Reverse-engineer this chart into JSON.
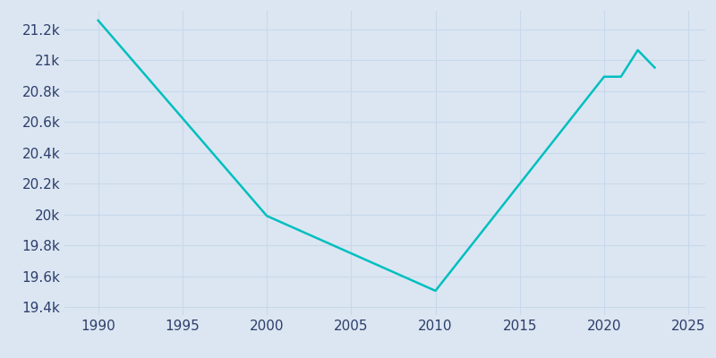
{
  "years": [
    1990,
    2000,
    2010,
    2020,
    2021,
    2022,
    2023
  ],
  "population": [
    21257,
    19992,
    19507,
    20893,
    20893,
    21065,
    20952
  ],
  "line_color": "#00BFBF",
  "background_color": "#dde6f0",
  "axes_facecolor": "#dce6f2",
  "figure_facecolor": "#dce6f2",
  "tick_color": "#2c3e6b",
  "grid_color": "#c8d8ea",
  "xlim": [
    1988,
    2026
  ],
  "ylim": [
    19350,
    21320
  ],
  "xticks": [
    1990,
    1995,
    2000,
    2005,
    2010,
    2015,
    2020,
    2025
  ],
  "ytick_values": [
    19400,
    19600,
    19800,
    20000,
    20200,
    20400,
    20600,
    20800,
    21000,
    21200
  ],
  "ytick_labels": [
    "19.4k",
    "19.6k",
    "19.8k",
    "20k",
    "20.2k",
    "20.4k",
    "20.6k",
    "20.8k",
    "21k",
    "21.2k"
  ],
  "line_width": 1.8,
  "tick_fontsize": 11
}
